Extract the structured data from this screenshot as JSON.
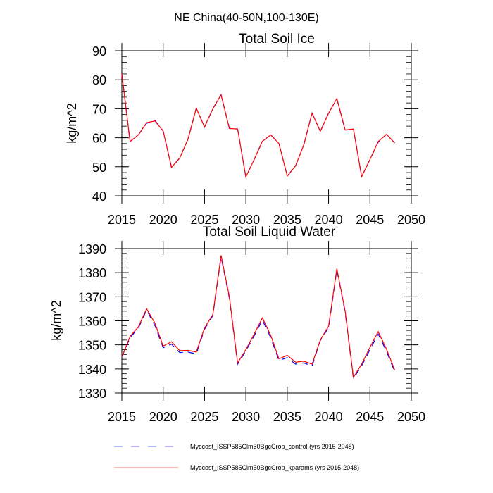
{
  "page_title": "NE China(40-50N,100-130E)",
  "legend": [
    {
      "label": "Myccost_ISSP585Clm50BgcCrop_control (yrs 2015-2048)",
      "color": "#0000ff",
      "style": "dashed"
    },
    {
      "label": "Myccost_ISSP585Clm50BgcCrop_kparams (yrs 2015-2048)",
      "color": "#ff0000",
      "style": "solid"
    }
  ],
  "chart_data": [
    {
      "type": "line",
      "title": "Total Soil Ice",
      "xlabel": "",
      "ylabel": "kg/m^2",
      "xlim": [
        2015,
        2050
      ],
      "ylim": [
        40,
        90
      ],
      "xticks": [
        2015,
        2020,
        2025,
        2030,
        2035,
        2040,
        2045,
        2050
      ],
      "yticks": [
        40,
        50,
        60,
        70,
        80,
        90
      ],
      "y_minor_step": 2,
      "grid": false,
      "x": [
        2015,
        2016,
        2017,
        2018,
        2019,
        2020,
        2021,
        2022,
        2023,
        2024,
        2025,
        2026,
        2027,
        2028,
        2029,
        2030,
        2031,
        2032,
        2033,
        2034,
        2035,
        2036,
        2037,
        2038,
        2039,
        2040,
        2041,
        2042,
        2043,
        2044,
        2045,
        2046,
        2047,
        2048
      ],
      "series": [
        {
          "name": "Myccost_ISSP585Clm50BgcCrop_control",
          "color": "#0000ff",
          "style": "dashed",
          "values": [
            82.0,
            58.7,
            61.0,
            65.0,
            66.0,
            62.3,
            49.8,
            53.0,
            59.5,
            70.2,
            63.7,
            70.0,
            74.8,
            63.2,
            63.0,
            46.5,
            52.5,
            58.8,
            61.0,
            58.0,
            46.8,
            50.3,
            57.5,
            68.5,
            62.2,
            68.5,
            73.5,
            62.6,
            63.0,
            46.6,
            52.5,
            58.5,
            61.2,
            58.2
          ]
        },
        {
          "name": "Myccost_ISSP585Clm50BgcCrop_kparams",
          "color": "#ff0000",
          "style": "solid",
          "values": [
            82.0,
            58.7,
            61.0,
            65.2,
            65.8,
            62.3,
            49.8,
            53.0,
            59.5,
            70.2,
            63.7,
            70.0,
            74.8,
            63.2,
            63.0,
            46.5,
            52.5,
            58.8,
            61.0,
            58.0,
            46.8,
            50.3,
            57.5,
            68.5,
            62.2,
            68.5,
            73.5,
            62.7,
            63.0,
            46.6,
            52.5,
            58.7,
            61.2,
            58.2
          ]
        }
      ]
    },
    {
      "type": "line",
      "title": "Total Soil Liquid Water",
      "xlabel": "",
      "ylabel": "kg/m^2",
      "xlim": [
        2015,
        2050
      ],
      "ylim": [
        1330,
        1390
      ],
      "xticks": [
        2015,
        2020,
        2025,
        2030,
        2035,
        2040,
        2045,
        2050
      ],
      "yticks": [
        1330,
        1340,
        1350,
        1360,
        1370,
        1380,
        1390
      ],
      "y_minor_step": 2,
      "grid": false,
      "x": [
        2015,
        2016,
        2017,
        2018,
        2019,
        2020,
        2021,
        2022,
        2023,
        2024,
        2025,
        2026,
        2027,
        2028,
        2029,
        2030,
        2031,
        2032,
        2033,
        2034,
        2035,
        2036,
        2037,
        2038,
        2039,
        2040,
        2041,
        2042,
        2043,
        2044,
        2045,
        2046,
        2047,
        2048
      ],
      "series": [
        {
          "name": "Myccost_ISSP585Clm50BgcCrop_control",
          "color": "#0000ff",
          "style": "dashed",
          "values": [
            1345.0,
            1353.0,
            1357.0,
            1364.5,
            1358.0,
            1348.8,
            1350.3,
            1346.8,
            1347.0,
            1346.2,
            1356.5,
            1362.2,
            1386.5,
            1369.5,
            1342.0,
            1347.5,
            1353.8,
            1360.3,
            1353.0,
            1343.5,
            1344.7,
            1342.0,
            1342.5,
            1341.2,
            1351.8,
            1357.2,
            1381.2,
            1363.5,
            1336.0,
            1341.3,
            1348.0,
            1354.5,
            1347.3,
            1338.8
          ]
        },
        {
          "name": "Myccost_ISSP585Clm50BgcCrop_kparams",
          "color": "#ff0000",
          "style": "solid",
          "values": [
            1345.0,
            1353.5,
            1357.5,
            1365.0,
            1359.0,
            1349.5,
            1351.3,
            1347.6,
            1347.7,
            1347.0,
            1357.0,
            1362.6,
            1387.2,
            1370.0,
            1342.5,
            1348.0,
            1354.5,
            1361.2,
            1354.0,
            1344.2,
            1345.7,
            1342.8,
            1343.2,
            1342.0,
            1352.0,
            1357.8,
            1381.7,
            1364.0,
            1336.5,
            1342.0,
            1349.0,
            1355.5,
            1348.2,
            1339.5
          ]
        }
      ]
    }
  ]
}
